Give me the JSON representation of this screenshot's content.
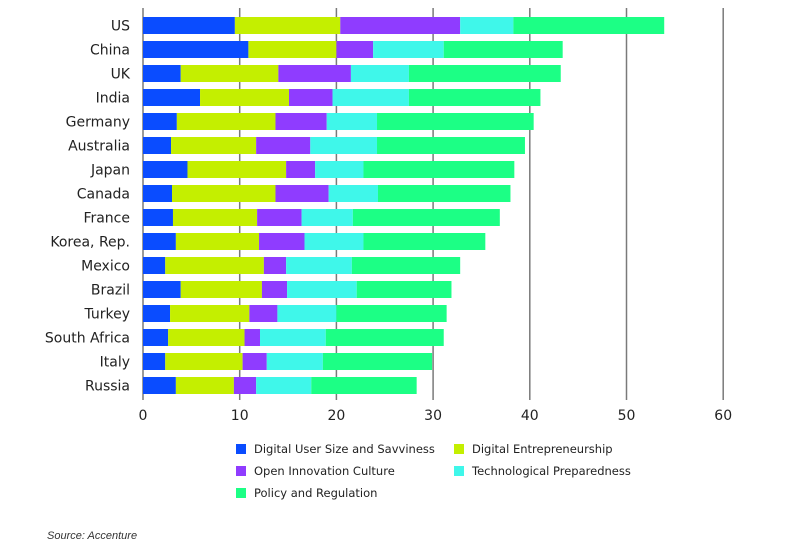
{
  "chart_data": {
    "type": "bar",
    "orientation": "horizontal",
    "stacked": true,
    "title": "",
    "xlabel": "",
    "ylabel": "",
    "xlim": [
      0,
      60
    ],
    "xticks": [
      0,
      10,
      20,
      30,
      40,
      50,
      60
    ],
    "grid": true,
    "legend_position": "bottom",
    "categories": [
      "US",
      "China",
      "UK",
      "India",
      "Germany",
      "Australia",
      "Japan",
      "Canada",
      "France",
      "Korea, Rep.",
      "Mexico",
      "Brazil",
      "Turkey",
      "South Africa",
      "Italy",
      "Russia"
    ],
    "series": [
      {
        "name": "Digital User Size and Savviness",
        "color": "#0a4cff",
        "values": [
          9.5,
          10.9,
          3.9,
          5.9,
          3.5,
          2.9,
          4.6,
          3.0,
          3.1,
          3.4,
          2.3,
          3.9,
          2.8,
          2.6,
          2.3,
          3.4
        ]
      },
      {
        "name": "Digital Entrepreneurship",
        "color": "#c4ef00",
        "values": [
          10.9,
          9.1,
          10.1,
          9.2,
          10.2,
          8.8,
          10.2,
          10.7,
          8.7,
          8.6,
          10.2,
          8.4,
          8.2,
          7.9,
          8.0,
          6.0
        ]
      },
      {
        "name": "Open Innovation Culture",
        "color": "#8f3cff",
        "values": [
          12.4,
          3.8,
          7.5,
          4.5,
          5.3,
          5.6,
          3.0,
          5.5,
          4.6,
          4.7,
          2.3,
          2.6,
          2.9,
          1.6,
          2.5,
          2.3
        ]
      },
      {
        "name": "Technological Preparedness",
        "color": "#3ff7ea",
        "values": [
          5.5,
          7.3,
          6.0,
          7.9,
          5.2,
          6.9,
          5.0,
          5.1,
          5.3,
          6.1,
          6.8,
          7.2,
          6.1,
          6.8,
          5.8,
          5.7
        ]
      },
      {
        "name": "Policy and Regulation",
        "color": "#1cff85",
        "values": [
          15.6,
          12.3,
          15.7,
          13.6,
          16.2,
          15.3,
          15.6,
          13.7,
          15.2,
          12.6,
          11.2,
          9.8,
          11.4,
          12.2,
          11.3,
          10.9
        ]
      }
    ]
  },
  "legend": {
    "items": [
      {
        "label": "Digital User Size and Savviness",
        "color": "#0a4cff"
      },
      {
        "label": "Digital Entrepreneurship",
        "color": "#c4ef00"
      },
      {
        "label": "Open Innovation Culture",
        "color": "#8f3cff"
      },
      {
        "label": "Technological Preparedness",
        "color": "#3ff7ea"
      },
      {
        "label": "Policy and Regulation",
        "color": "#1cff85"
      }
    ]
  },
  "source": "Source: Accenture"
}
